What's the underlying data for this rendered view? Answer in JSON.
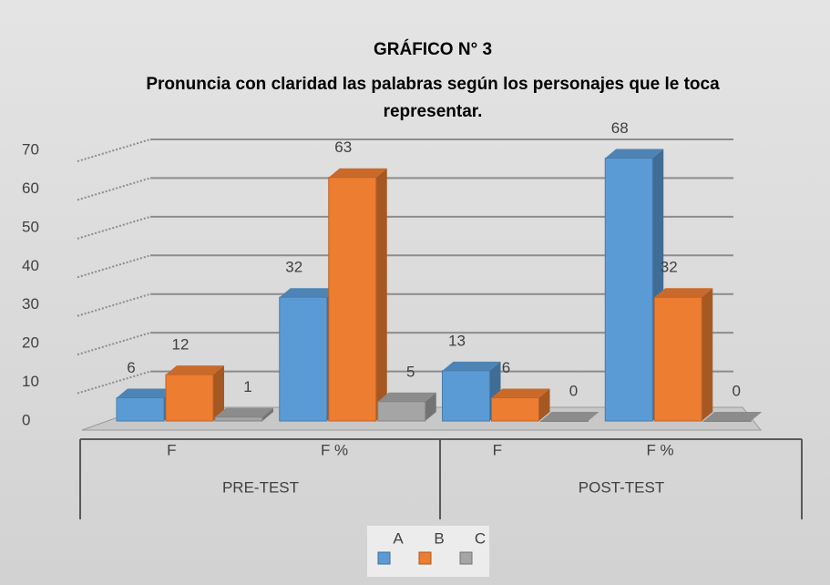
{
  "chart_data": {
    "type": "bar3d",
    "title": "GRÁFICO N° 3",
    "subtitle": "Pronuncia con claridad las palabras según los  personajes que le toca representar.",
    "categories": [
      "F",
      "F %",
      "F",
      "F %"
    ],
    "groups": [
      "PRE-TEST",
      "POST-TEST"
    ],
    "series": [
      {
        "name": "A",
        "color": "#5b9bd5",
        "values": [
          6,
          32,
          13,
          68
        ]
      },
      {
        "name": "B",
        "color": "#ed7d31",
        "values": [
          12,
          63,
          6,
          32
        ]
      },
      {
        "name": "C",
        "color": "#a5a5a5",
        "values": [
          1,
          5,
          0,
          0
        ]
      }
    ],
    "ylim": [
      0,
      70
    ],
    "yticks": [
      0,
      10,
      20,
      30,
      40,
      50,
      60,
      70
    ],
    "grid": true
  }
}
